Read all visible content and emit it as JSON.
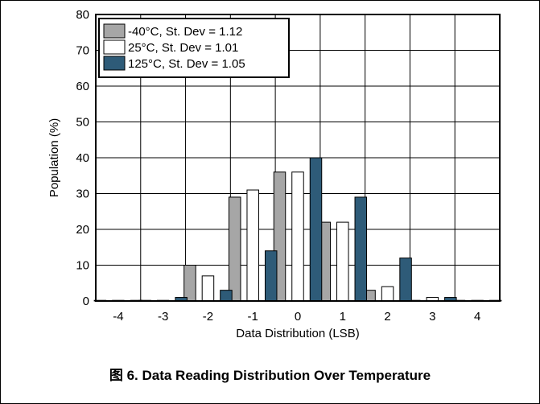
{
  "caption": "图 6. Data Reading Distribution Over Temperature",
  "chart_data": {
    "type": "bar",
    "title": "",
    "xlabel": "Data Distribution (LSB)",
    "ylabel": "Population (%)",
    "categories": [
      "-4",
      "-3",
      "-2",
      "-1",
      "0",
      "1",
      "2",
      "3",
      "4"
    ],
    "ylim": [
      0,
      80
    ],
    "yticks": [
      0,
      10,
      20,
      30,
      40,
      50,
      60,
      70,
      80
    ],
    "grid": true,
    "legend_position": "top-left",
    "series": [
      {
        "name": "-40°C, St. Dev = 1.12",
        "color": "#a6a6a6",
        "values": [
          0,
          0,
          10,
          29,
          36,
          22,
          3,
          0,
          0
        ]
      },
      {
        "name": "25°C, St. Dev = 1.01",
        "color": "#ffffff",
        "values": [
          0,
          0,
          7,
          31,
          36,
          22,
          4,
          1,
          0
        ]
      },
      {
        "name": "125°C, St. Dev = 1.05",
        "color": "#2e5b78",
        "values": [
          0,
          1,
          3,
          14,
          40,
          29,
          12,
          1,
          0
        ]
      }
    ]
  }
}
